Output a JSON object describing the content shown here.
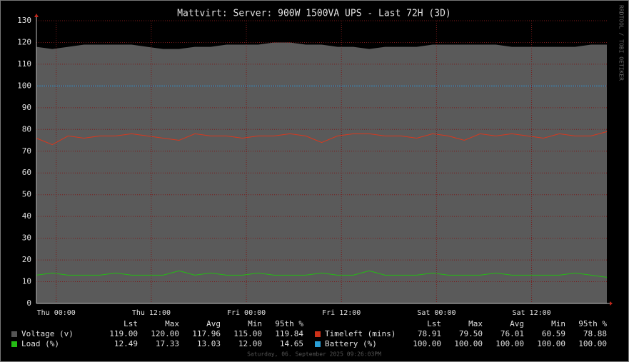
{
  "chart_data": {
    "type": "timeseries",
    "title": "Mattvirt: Server: 900W 1500VA UPS - Last 72H (3D)",
    "side_text": "RRDTOOL / TOBI OETIKER",
    "footer": "Saturday, 06. September 2025 09:26:03PM",
    "xlim": [
      -2.5,
      69.5
    ],
    "xticks": [
      {
        "value": 0,
        "label": "Thu 00:00"
      },
      {
        "value": 12,
        "label": "Thu 12:00"
      },
      {
        "value": 24,
        "label": "Fri 00:00"
      },
      {
        "value": 36,
        "label": "Fri 12:00"
      },
      {
        "value": 48,
        "label": "Sat 00:00"
      },
      {
        "value": 60,
        "label": "Sat 12:00"
      }
    ],
    "ylim": [
      0,
      130
    ],
    "yticks": [
      0,
      10,
      20,
      30,
      40,
      50,
      60,
      70,
      80,
      90,
      100,
      110,
      120,
      130
    ],
    "grid": true,
    "x": [
      -2.5,
      -0.5,
      1.5,
      3.5,
      5.5,
      7.5,
      9.5,
      11.5,
      13.5,
      15.5,
      17.5,
      19.5,
      21.5,
      23.5,
      25.5,
      27.5,
      29.5,
      31.5,
      33.5,
      35.5,
      37.5,
      39.5,
      41.5,
      43.5,
      45.5,
      47.5,
      49.5,
      51.5,
      53.5,
      55.5,
      57.5,
      59.5,
      61.5,
      63.5,
      65.5,
      67.5,
      69.5
    ],
    "stats_headers": [
      "Lst",
      "Max",
      "Avg",
      "Min",
      "95th %"
    ],
    "series": [
      {
        "name": "Voltage (v)",
        "style": "area",
        "color": "#5a5a5a",
        "swatch": "#555555",
        "values": [
          118,
          117,
          118,
          119,
          119,
          119,
          119,
          118,
          117,
          117,
          118,
          118,
          119,
          119,
          119,
          120,
          120,
          119,
          119,
          118,
          118,
          117,
          118,
          118,
          118,
          119,
          119,
          119,
          119,
          119,
          118,
          118,
          118,
          118,
          118,
          119,
          119
        ],
        "stats": [
          119,
          120,
          117.96,
          115,
          119.84
        ],
        "stats_labels": [
          "119.00",
          "120.00",
          "117.96",
          "115.00",
          "119.84"
        ]
      },
      {
        "name": "Timeleft (mins)",
        "style": "line",
        "color": "#d8381e",
        "swatch": "#cc3118",
        "values": [
          76,
          73,
          77,
          76,
          77,
          77,
          78,
          77,
          76,
          75,
          78,
          77,
          77,
          76,
          77,
          77,
          78,
          77,
          74,
          77,
          78,
          78,
          77,
          77,
          76,
          78,
          77,
          75,
          78,
          77,
          78,
          77,
          76,
          78,
          77,
          77,
          79
        ],
        "stats": [
          78.91,
          79.5,
          76.01,
          60.59,
          78.88
        ],
        "stats_labels": [
          "78.91",
          "79.50",
          "76.01",
          "60.59",
          "78.88"
        ]
      },
      {
        "name": "Load (%)",
        "style": "line",
        "color": "#24bc14",
        "swatch": "#24bc14",
        "values": [
          13,
          14,
          13,
          13,
          13,
          14,
          13,
          13,
          13,
          15,
          13,
          14,
          13,
          13,
          14,
          13,
          13,
          13,
          14,
          13,
          13,
          15,
          13,
          13,
          13,
          14,
          13,
          13,
          13,
          14,
          13,
          13,
          13,
          13,
          14,
          13,
          12
        ],
        "stats": [
          12.49,
          17.33,
          13.03,
          12,
          14.65
        ],
        "stats_labels": [
          "12.49",
          "17.33",
          "13.03",
          "12.00",
          "14.65"
        ]
      },
      {
        "name": "Battery (%)",
        "style": "line",
        "color": "#2a9fd6",
        "swatch": "#2a9fd6",
        "values": [
          100,
          100,
          100,
          100,
          100,
          100,
          100,
          100,
          100,
          100,
          100,
          100,
          100,
          100,
          100,
          100,
          100,
          100,
          100,
          100,
          100,
          100,
          100,
          100,
          100,
          100,
          100,
          100,
          100,
          100,
          100,
          100,
          100,
          100,
          100,
          100,
          100
        ],
        "stats": [
          100,
          100,
          100,
          100,
          100
        ],
        "stats_labels": [
          "100.00",
          "100.00",
          "100.00",
          "100.00",
          "100.00"
        ]
      }
    ]
  }
}
